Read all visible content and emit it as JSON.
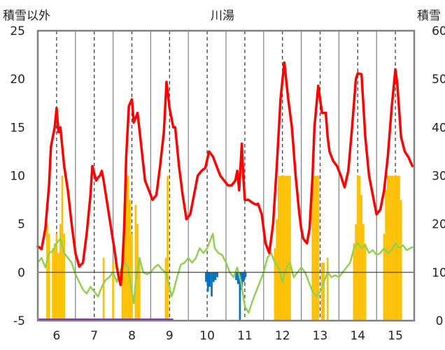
{
  "chart_data": {
    "type": "line",
    "title": "川湯",
    "y_left_label": "積雪以外",
    "y_right_label": "積雪",
    "y_left_ticks": [
      "25",
      "20",
      "15",
      "10",
      "5",
      "0",
      "-5"
    ],
    "y_right_ticks": [
      "60",
      "50",
      "40",
      "30",
      "20",
      "10",
      "0"
    ],
    "x_tick_labels": [
      "6",
      "7",
      "8",
      "9",
      "10",
      "11",
      "12",
      "13",
      "14",
      "15"
    ],
    "y_left_range": [
      -5,
      25
    ],
    "y_right_range": [
      0,
      60
    ],
    "x_range": [
      5.5,
      15.5
    ],
    "grid": "vertical dashed lines at each day label, solid separators between days",
    "colors": {
      "temperature_line": "#ff0000",
      "green_line": "#92d050",
      "snow_bars": "#ffc000",
      "negative_bars": "#0070c0",
      "bottom_bar": "#7030a0",
      "axis": "#808080"
    },
    "series": [
      {
        "role": "red line (left axis)",
        "points": [
          [
            5.5,
            2.7
          ],
          [
            5.6,
            2.4
          ],
          [
            5.7,
            4.5
          ],
          [
            5.8,
            9.0
          ],
          [
            5.85,
            13.0
          ],
          [
            5.95,
            15.0
          ],
          [
            6.0,
            17.0
          ],
          [
            6.05,
            14.5
          ],
          [
            6.1,
            15.0
          ],
          [
            6.2,
            11.0
          ],
          [
            6.3,
            8.5
          ],
          [
            6.4,
            5.0
          ],
          [
            6.5,
            2.0
          ],
          [
            6.6,
            0.6
          ],
          [
            6.7,
            1.0
          ],
          [
            6.8,
            4.0
          ],
          [
            6.9,
            8.0
          ],
          [
            6.95,
            11.0
          ],
          [
            7.05,
            9.5
          ],
          [
            7.1,
            9.8
          ],
          [
            7.15,
            10.0
          ],
          [
            7.2,
            10.5
          ],
          [
            7.25,
            9.5
          ],
          [
            7.35,
            7.0
          ],
          [
            7.45,
            4.5
          ],
          [
            7.55,
            2.0
          ],
          [
            7.6,
            0.5
          ],
          [
            7.65,
            -0.5
          ],
          [
            7.7,
            -1.3
          ],
          [
            7.75,
            1.0
          ],
          [
            7.8,
            5.0
          ],
          [
            7.85,
            12.0
          ],
          [
            7.92,
            17.2
          ],
          [
            8.0,
            17.9
          ],
          [
            8.05,
            15.5
          ],
          [
            8.1,
            16.0
          ],
          [
            8.15,
            16.5
          ],
          [
            8.25,
            13.0
          ],
          [
            8.35,
            9.5
          ],
          [
            8.45,
            8.5
          ],
          [
            8.55,
            7.5
          ],
          [
            8.65,
            8.0
          ],
          [
            8.75,
            11.0
          ],
          [
            8.85,
            14.5
          ],
          [
            8.92,
            19.7
          ],
          [
            9.0,
            17.0
          ],
          [
            9.1,
            15.0
          ],
          [
            9.15,
            15.0
          ],
          [
            9.25,
            11.0
          ],
          [
            9.35,
            8.0
          ],
          [
            9.45,
            5.5
          ],
          [
            9.55,
            6.0
          ],
          [
            9.65,
            8.0
          ],
          [
            9.75,
            10.0
          ],
          [
            9.85,
            10.5
          ],
          [
            9.95,
            10.8
          ],
          [
            10.05,
            12.5
          ],
          [
            10.15,
            12.0
          ],
          [
            10.25,
            11.0
          ],
          [
            10.35,
            10.0
          ],
          [
            10.45,
            9.5
          ],
          [
            10.55,
            9.0
          ],
          [
            10.65,
            9.0
          ],
          [
            10.75,
            9.5
          ],
          [
            10.8,
            10.5
          ],
          [
            10.85,
            8.5
          ],
          [
            10.92,
            13.3
          ],
          [
            10.96,
            10.0
          ],
          [
            11.0,
            7.5
          ],
          [
            11.1,
            7.5
          ],
          [
            11.2,
            7.2
          ],
          [
            11.3,
            7.0
          ],
          [
            11.35,
            7.1
          ],
          [
            11.45,
            6.0
          ],
          [
            11.55,
            3.0
          ],
          [
            11.65,
            2.0
          ],
          [
            11.75,
            5.0
          ],
          [
            11.85,
            11.0
          ],
          [
            11.95,
            18.0
          ],
          [
            12.05,
            21.7
          ],
          [
            12.15,
            18.0
          ],
          [
            12.25,
            15.0
          ],
          [
            12.35,
            10.0
          ],
          [
            12.45,
            6.0
          ],
          [
            12.5,
            4.5
          ],
          [
            12.55,
            3.5
          ],
          [
            12.65,
            3.0
          ],
          [
            12.72,
            4.5
          ],
          [
            12.8,
            10.0
          ],
          [
            12.85,
            15.0
          ],
          [
            12.95,
            19.3
          ],
          [
            13.05,
            16.5
          ],
          [
            13.15,
            16.5
          ],
          [
            13.2,
            14.0
          ],
          [
            13.25,
            12.5
          ],
          [
            13.35,
            11.5
          ],
          [
            13.45,
            11.0
          ],
          [
            13.55,
            10.0
          ],
          [
            13.65,
            8.8
          ],
          [
            13.75,
            10.5
          ],
          [
            13.85,
            15.0
          ],
          [
            13.95,
            20.0
          ],
          [
            14.0,
            20.6
          ],
          [
            14.1,
            20.5
          ],
          [
            14.2,
            14.0
          ],
          [
            14.3,
            10.0
          ],
          [
            14.4,
            8.0
          ],
          [
            14.5,
            6.0
          ],
          [
            14.6,
            6.5
          ],
          [
            14.7,
            8.5
          ],
          [
            14.8,
            12.0
          ],
          [
            14.9,
            17.0
          ],
          [
            15.0,
            21.0
          ],
          [
            15.05,
            19.5
          ],
          [
            15.15,
            14.0
          ],
          [
            15.25,
            12.5
          ],
          [
            15.35,
            11.9
          ],
          [
            15.45,
            11.0
          ]
        ]
      },
      {
        "role": "green line (left axis)",
        "points": [
          [
            5.5,
            1.0
          ],
          [
            5.6,
            1.5
          ],
          [
            5.7,
            0.5
          ],
          [
            5.8,
            2.0
          ],
          [
            5.9,
            2.2
          ],
          [
            6.0,
            3.0
          ],
          [
            6.1,
            3.5
          ],
          [
            6.2,
            2.0
          ],
          [
            6.3,
            1.5
          ],
          [
            6.4,
            1.0
          ],
          [
            6.5,
            -0.2
          ],
          [
            6.6,
            -1.0
          ],
          [
            6.7,
            -1.8
          ],
          [
            6.8,
            -2.2
          ],
          [
            6.9,
            -1.5
          ],
          [
            7.0,
            -2.0
          ],
          [
            7.1,
            -2.5
          ],
          [
            7.2,
            -1.5
          ],
          [
            7.3,
            -0.8
          ],
          [
            7.4,
            -0.5
          ],
          [
            7.5,
            0.0
          ],
          [
            7.6,
            -1.0
          ],
          [
            7.7,
            0.2
          ],
          [
            7.8,
            1.0
          ],
          [
            7.9,
            0.5
          ],
          [
            8.0,
            -2.0
          ],
          [
            8.05,
            -3.2
          ],
          [
            8.1,
            -1.0
          ],
          [
            8.2,
            1.5
          ],
          [
            8.3,
            0.0
          ],
          [
            8.4,
            -0.2
          ],
          [
            8.5,
            0.0
          ],
          [
            8.6,
            0.5
          ],
          [
            8.7,
            0.8
          ],
          [
            8.8,
            0.3
          ],
          [
            8.9,
            0.0
          ],
          [
            9.0,
            -1.5
          ],
          [
            9.05,
            -2.5
          ],
          [
            9.1,
            -2.0
          ],
          [
            9.2,
            -0.5
          ],
          [
            9.3,
            0.8
          ],
          [
            9.4,
            1.0
          ],
          [
            9.5,
            1.5
          ],
          [
            9.6,
            1.0
          ],
          [
            9.7,
            1.5
          ],
          [
            9.8,
            2.5
          ],
          [
            9.9,
            2.0
          ],
          [
            10.0,
            2.5
          ],
          [
            10.1,
            3.5
          ],
          [
            10.15,
            4.0
          ],
          [
            10.2,
            2.5
          ],
          [
            10.3,
            2.0
          ],
          [
            10.4,
            1.8
          ],
          [
            10.5,
            1.0
          ],
          [
            10.6,
            0.0
          ],
          [
            10.7,
            -0.5
          ],
          [
            10.8,
            0.5
          ],
          [
            10.9,
            -1.0
          ],
          [
            11.0,
            -3.5
          ],
          [
            11.1,
            -4.2
          ],
          [
            11.2,
            -3.0
          ],
          [
            11.3,
            -2.0
          ],
          [
            11.4,
            -1.0
          ],
          [
            11.5,
            0.0
          ],
          [
            11.6,
            1.5
          ],
          [
            11.7,
            2.0
          ],
          [
            11.8,
            1.0
          ],
          [
            11.9,
            0.5
          ],
          [
            12.0,
            -1.0
          ],
          [
            12.1,
            0.5
          ],
          [
            12.2,
            1.0
          ],
          [
            12.3,
            -0.5
          ],
          [
            12.4,
            0.0
          ],
          [
            12.5,
            0.5
          ],
          [
            12.6,
            0.0
          ],
          [
            12.7,
            -1.0
          ],
          [
            12.8,
            -2.0
          ],
          [
            12.9,
            -2.5
          ],
          [
            13.0,
            -2.0
          ],
          [
            13.1,
            -1.0
          ],
          [
            13.2,
            0.0
          ],
          [
            13.3,
            -0.5
          ],
          [
            13.4,
            -0.3
          ],
          [
            13.5,
            -0.5
          ],
          [
            13.6,
            0.0
          ],
          [
            13.7,
            0.5
          ],
          [
            13.8,
            1.0
          ],
          [
            13.9,
            2.5
          ],
          [
            14.0,
            3.0
          ],
          [
            14.1,
            2.5
          ],
          [
            14.2,
            2.8
          ],
          [
            14.3,
            2.0
          ],
          [
            14.4,
            2.3
          ],
          [
            14.5,
            1.8
          ],
          [
            14.6,
            2.0
          ],
          [
            14.7,
            2.5
          ],
          [
            14.8,
            2.0
          ],
          [
            14.9,
            2.3
          ],
          [
            15.0,
            3.0
          ],
          [
            15.1,
            2.5
          ],
          [
            15.2,
            2.8
          ],
          [
            15.3,
            2.3
          ],
          [
            15.4,
            2.5
          ],
          [
            15.45,
            2.6
          ]
        ]
      },
      {
        "role": "orange bars (right axis)",
        "points": [
          [
            5.75,
            20
          ],
          [
            5.8,
            18
          ],
          [
            5.9,
            15
          ],
          [
            5.95,
            16
          ],
          [
            6.0,
            18
          ],
          [
            6.05,
            14
          ],
          [
            6.1,
            20
          ],
          [
            6.15,
            30
          ],
          [
            6.2,
            18
          ],
          [
            7.25,
            13
          ],
          [
            7.5,
            12
          ],
          [
            7.75,
            14
          ],
          [
            7.8,
            24
          ],
          [
            7.85,
            30
          ],
          [
            7.9,
            30
          ],
          [
            7.95,
            25
          ],
          [
            8.0,
            18
          ],
          [
            8.1,
            24
          ],
          [
            8.15,
            20
          ],
          [
            8.2,
            13
          ],
          [
            8.9,
            13
          ],
          [
            8.95,
            30
          ],
          [
            11.8,
            15
          ],
          [
            11.85,
            21
          ],
          [
            11.9,
            30
          ],
          [
            11.95,
            30
          ],
          [
            12.0,
            30
          ],
          [
            12.05,
            30
          ],
          [
            12.1,
            30
          ],
          [
            12.15,
            30
          ],
          [
            12.2,
            30
          ],
          [
            12.8,
            30
          ],
          [
            12.85,
            30
          ],
          [
            12.9,
            30
          ],
          [
            12.95,
            30
          ],
          [
            13.05,
            12
          ],
          [
            13.1,
            12
          ],
          [
            13.2,
            13
          ],
          [
            13.9,
            16
          ],
          [
            13.95,
            20
          ],
          [
            14.0,
            30
          ],
          [
            14.05,
            30
          ],
          [
            14.1,
            26
          ],
          [
            14.15,
            20
          ],
          [
            14.2,
            16
          ],
          [
            14.7,
            18
          ],
          [
            14.75,
            27
          ],
          [
            14.8,
            30
          ],
          [
            14.85,
            30
          ],
          [
            14.9,
            30
          ],
          [
            14.95,
            30
          ],
          [
            15.0,
            30
          ],
          [
            15.05,
            30
          ],
          [
            15.1,
            30
          ],
          [
            15.15,
            25
          ]
        ]
      },
      {
        "role": "blue bars (left axis)",
        "points": [
          [
            9.97,
            -1.0
          ],
          [
            10.02,
            -2.0
          ],
          [
            10.07,
            -1.5
          ],
          [
            10.12,
            -2.5
          ],
          [
            10.17,
            -1.0
          ],
          [
            10.22,
            -0.8
          ],
          [
            10.27,
            -0.5
          ],
          [
            10.77,
            -0.8
          ],
          [
            10.82,
            -1.2
          ],
          [
            10.87,
            -5.0
          ],
          [
            10.92,
            -1.8
          ],
          [
            10.97,
            -1.0
          ],
          [
            11.02,
            -0.5
          ]
        ]
      },
      {
        "role": "purple bar at bottom",
        "points": [
          [
            5.5,
            -5
          ],
          [
            9.1,
            -5
          ]
        ]
      }
    ]
  }
}
